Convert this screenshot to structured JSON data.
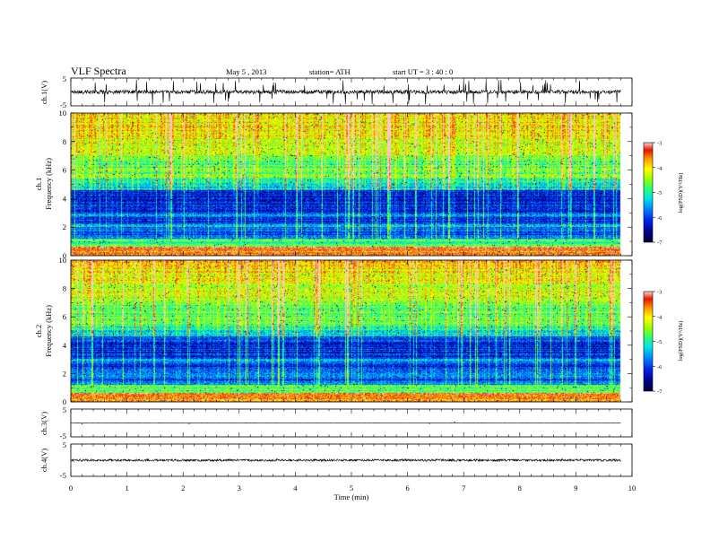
{
  "header": {
    "title": "VLF  Spectra",
    "date": "May 5  , 2013",
    "station": "station= ATH",
    "start": "start  UT  =   3  : 40 : 0"
  },
  "chart_data": {
    "type": "heatmap",
    "xlabel": "Time  (min)",
    "xlim": [
      0,
      10
    ],
    "xticks": [
      "0",
      "1",
      "2",
      "3",
      "4",
      "5",
      "6",
      "7",
      "8",
      "9",
      "10"
    ],
    "data_end_min": 9.8,
    "panels": [
      {
        "id": "ch1-waveform",
        "type": "line",
        "ylabel": "ch.1(V)",
        "ylim": [
          -5,
          5
        ],
        "yticks": [
          "5",
          "-5"
        ],
        "baseline": 0,
        "noise_amplitude": 0.7,
        "spike_amplitude": 4.5
      },
      {
        "id": "ch1-spectrogram",
        "type": "heatmap",
        "ylabel_top": "ch.1",
        "ylabel": "Frequency  (kHz)",
        "ylim": [
          0,
          10
        ],
        "yticks": [
          "0",
          "2",
          "4",
          "6",
          "8",
          "10"
        ],
        "colorbar": {
          "label": "log(PSD)(V²/Hz)",
          "range": [
            -7,
            -3
          ],
          "ticks": [
            "-3",
            "-4",
            "-5",
            "-6",
            "-7"
          ]
        }
      },
      {
        "id": "ch2-spectrogram",
        "type": "heatmap",
        "ylabel_top": "ch.2",
        "ylabel": "Frequency  (kHz)",
        "ylim": [
          0,
          10
        ],
        "yticks": [
          "0",
          "2",
          "4",
          "6",
          "8",
          "10"
        ],
        "colorbar": {
          "label": "log(PSD)(V²/Hz)",
          "range": [
            -7,
            -3
          ],
          "ticks": [
            "-3",
            "-4",
            "-5",
            "-6",
            "-7"
          ]
        }
      },
      {
        "id": "ch3-waveform",
        "type": "line",
        "ylabel": "ch.3(V)",
        "ylim": [
          -5,
          5
        ],
        "yticks": [
          "5",
          "-5"
        ],
        "baseline": 0,
        "noise_amplitude": 0.05,
        "spike_amplitude": 0.5
      },
      {
        "id": "ch4-waveform",
        "type": "line",
        "ylabel": "ch.4(V)",
        "ylim": [
          -5,
          5
        ],
        "yticks": [
          "5",
          "-5"
        ],
        "baseline": 0,
        "noise_amplitude": 0.35,
        "spike_amplitude": 0.6
      }
    ]
  }
}
